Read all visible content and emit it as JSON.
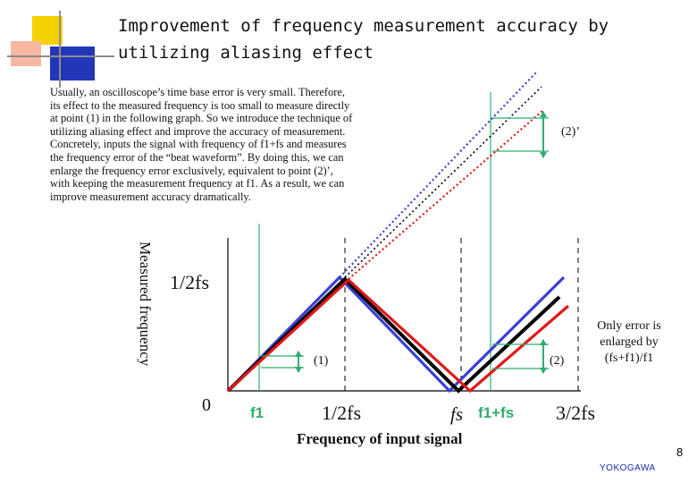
{
  "title": {
    "line1": "Improvement of frequency measurement accuracy by",
    "line2": "utilizing aliasing effect"
  },
  "body_text": [
    "Usually, an oscilloscope’s time base error is very small. Therefore,",
    "its effect to the measured frequency is too small to measure directly",
    "at point (1) in the following graph. So we introduce the technique of",
    "utilizing aliasing effect and improve the accuracy of measurement.",
    "Concretely, inputs the signal with frequency of f1+fs and measures",
    "the frequency error of the “beat waveform”. By doing this, we can",
    "enlarge the frequency error exclusively, equivalent to point (2)’,",
    "with keeping the measurement frequency at f1. As a result, we can",
    "improve measurement accuracy dramatically."
  ],
  "graph": {
    "y_axis_label": "Measured frequency",
    "y_tick_half_fs": "1/2fs",
    "y_tick_zero": "0",
    "x_tick_f1": "f1",
    "x_tick_half_fs": "1/2fs",
    "x_tick_fs": "fs",
    "x_tick_f1_plus_fs": "f1+fs",
    "x_tick_three_half_fs": "3/2fs",
    "x_axis_label": "Frequency of input signal",
    "marker_1": "(1)",
    "marker_2": "(2)",
    "marker_2_prime": "(2)’",
    "note": [
      "Only error is",
      "enlarged by",
      "(fs+f1)/f1"
    ],
    "colors": {
      "ideal": "#000000",
      "blue": "#3a3fd6",
      "red": "#e01818",
      "marker": "#2fae6f",
      "guide": "#2fae6f"
    }
  },
  "page_number": "8",
  "logo": "YOKOGAWA",
  "decor_colors": {
    "yellow": "#f4d100",
    "orange": "#f2a13a",
    "blue": "#1d2fb8",
    "gray": "#8c8c8c"
  }
}
